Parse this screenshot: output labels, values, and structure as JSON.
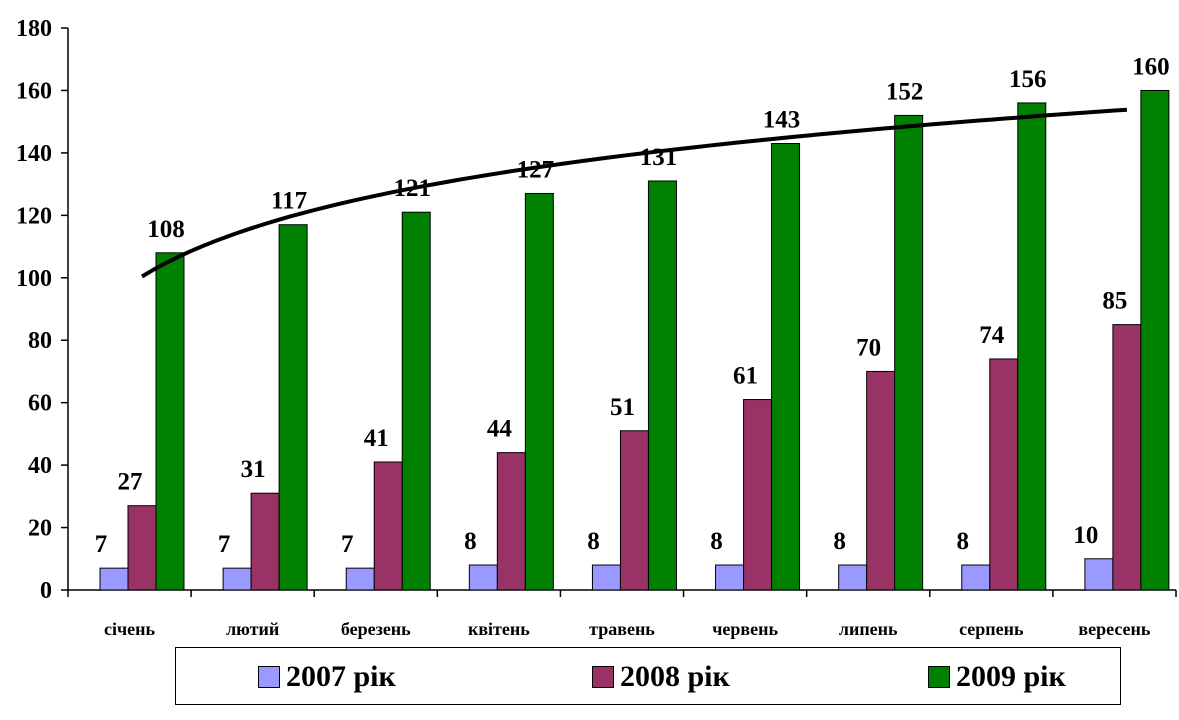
{
  "chart_data": {
    "type": "bar",
    "categories": [
      "січень",
      "лютий",
      "березень",
      "квітень",
      "травень",
      "червень",
      "липень",
      "серпень",
      "вересень"
    ],
    "series": [
      {
        "name": "2007 рік",
        "color": "#9999ff",
        "values": [
          7,
          7,
          7,
          8,
          8,
          8,
          8,
          8,
          10
        ]
      },
      {
        "name": "2008 рік",
        "color": "#993366",
        "values": [
          27,
          31,
          41,
          44,
          51,
          61,
          70,
          74,
          85
        ]
      },
      {
        "name": "2009 рік",
        "color": "#008000",
        "values": [
          108,
          117,
          121,
          127,
          131,
          143,
          152,
          156,
          160
        ]
      }
    ],
    "yticks": [
      "0",
      "20",
      "40",
      "60",
      "80",
      "100",
      "120",
      "140",
      "160",
      "180"
    ],
    "ylim": [
      0,
      180
    ],
    "trendline": {
      "series": "2009 рік",
      "type": "logarithmic",
      "color": "#000000"
    },
    "grid": false,
    "legend_position": "bottom"
  }
}
